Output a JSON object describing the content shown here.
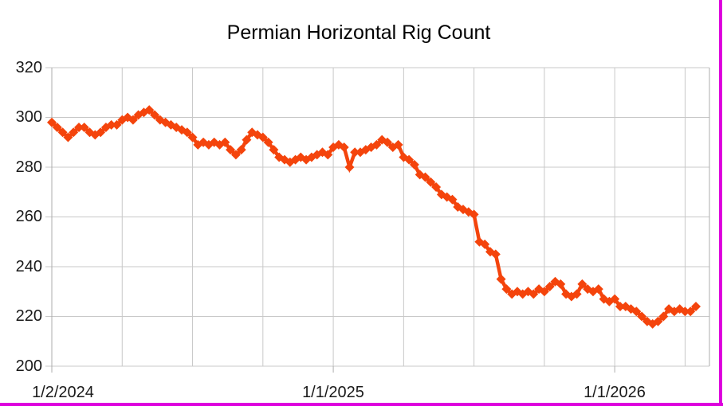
{
  "colors": {
    "series": "#F4440C",
    "grid": "#C8C8C8",
    "axis": "#ADADAD",
    "page_break": "#DD00DD",
    "background": "#FFFFFF",
    "title_text": "#000000",
    "axis_text": "#1A1A1A"
  },
  "chart_data": {
    "type": "line",
    "title": "Permian Horizontal Rig Count",
    "xlabel": "",
    "ylabel": "",
    "legend": "none",
    "grid": true,
    "marker": "diamond",
    "x_unit": "weeks since 1/2/2024",
    "x_domain_weeks": [
      0,
      121.5
    ],
    "x_gridline_interval_weeks": 13,
    "xticks": [
      {
        "label": "1/2/2024",
        "week": 0
      },
      {
        "label": "1/1/2025",
        "week": 52
      },
      {
        "label": "1/1/2026",
        "week": 104
      }
    ],
    "ylim": [
      200,
      320
    ],
    "yticks": [
      320,
      300,
      280,
      260,
      240,
      220,
      200
    ],
    "values": [
      298,
      296,
      294,
      292,
      294,
      296,
      296,
      294,
      293,
      294,
      296,
      297,
      297,
      299,
      300,
      299,
      301,
      302,
      303,
      301,
      299,
      298,
      297,
      296,
      295,
      294,
      292,
      289,
      290,
      289,
      290,
      289,
      290,
      287,
      285,
      287,
      291,
      294,
      293,
      292,
      290,
      287,
      284,
      283,
      282,
      283,
      284,
      283,
      284,
      285,
      286,
      285,
      288,
      289,
      288,
      280,
      286,
      286,
      287,
      288,
      289,
      291,
      290,
      288,
      289,
      284,
      283,
      281,
      277,
      276,
      274,
      272,
      269,
      268,
      267,
      264,
      263,
      262,
      261,
      250,
      249,
      246,
      245,
      235,
      231,
      229,
      230,
      229,
      230,
      229,
      231,
      230,
      232,
      234,
      233,
      229,
      228,
      229,
      233,
      231,
      230,
      231,
      227,
      226,
      227,
      224,
      224,
      223,
      222,
      220,
      218,
      217,
      218,
      220,
      223,
      222,
      223,
      222,
      222,
      224
    ]
  }
}
